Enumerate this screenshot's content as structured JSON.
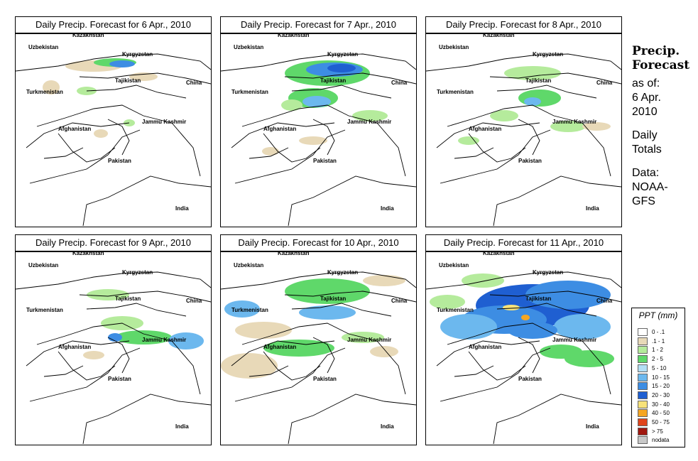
{
  "panels": [
    {
      "title": "Daily Precip. Forecast for  6 Apr., 2010"
    },
    {
      "title": "Daily Precip. Forecast for  7 Apr., 2010"
    },
    {
      "title": "Daily Precip. Forecast for  8 Apr., 2010"
    },
    {
      "title": "Daily Precip. Forecast for  9 Apr., 2010"
    },
    {
      "title": "Daily Precip. Forecast for  10 Apr., 2010"
    },
    {
      "title": "Daily Precip. Forecast for  11 Apr., 2010"
    }
  ],
  "map_labels": [
    "Kazakhstan",
    "Uzbekistan",
    "Kyrgyzstan",
    "Tajikistan",
    "Turkmenistan",
    "China",
    "Afghanistan",
    "Jammu Kashmir",
    "Pakistan",
    "India"
  ],
  "sidebar": {
    "heading_line1": "Precip.",
    "heading_line2": "Forecast",
    "asof_line1": "as of:",
    "asof_line2": "6 Apr.",
    "asof_line3": "2010",
    "totals_line1": "Daily",
    "totals_line2": "Totals",
    "data_line1": "Data:",
    "data_line2": "NOAA-",
    "data_line3": "GFS"
  },
  "legend": {
    "title": "PPT (mm)",
    "items": [
      {
        "label": "0 - .1",
        "color": "#ffffff"
      },
      {
        "label": ".1 - 1",
        "color": "#e8d9b8"
      },
      {
        "label": "1 - 2",
        "color": "#b5eb9c"
      },
      {
        "label": "2 - 5",
        "color": "#5fd86a"
      },
      {
        "label": "5 - 10",
        "color": "#b3dff5"
      },
      {
        "label": "10 - 15",
        "color": "#6cb8ee"
      },
      {
        "label": "15 - 20",
        "color": "#3d8de3"
      },
      {
        "label": "20 - 30",
        "color": "#1f5fd1"
      },
      {
        "label": "30 - 40",
        "color": "#f7e27a"
      },
      {
        "label": "40 - 50",
        "color": "#f5a623"
      },
      {
        "label": "50 - 75",
        "color": "#e0441b"
      },
      {
        "label": "> 75",
        "color": "#a0170f"
      },
      {
        "label": "nodata",
        "color": "#c8c8c8"
      }
    ]
  }
}
